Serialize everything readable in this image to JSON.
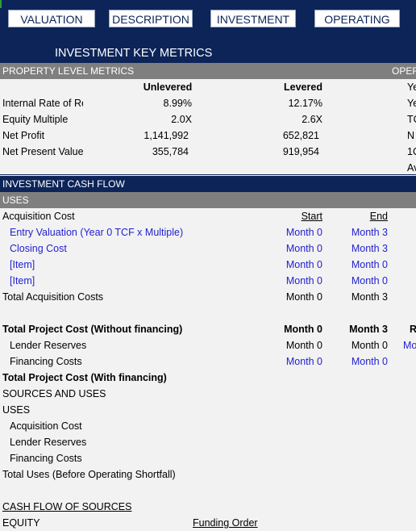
{
  "nav": {
    "valuation": "VALUATION",
    "description": "DESCRIPTION",
    "investment": "INVESTMENT",
    "operating": "OPERATING"
  },
  "header": {
    "title": "INVESTMENT KEY METRICS"
  },
  "property_metrics": {
    "section_label": "PROPERTY LEVEL METRICS",
    "right_section_label": "OPER",
    "col_unlevered": "Unlevered",
    "col_levered": "Levered",
    "rows": [
      {
        "label": "Internal Rate of Return",
        "unlevered": "8.99%",
        "levered": "12.17%"
      },
      {
        "label": "Equity Multiple",
        "unlevered": "2.0X",
        "levered": "2.6X"
      },
      {
        "label": "Net Profit",
        "unlevered": "1,141,992",
        "levered": "652,821"
      },
      {
        "label": "Net Present Value",
        "unlevered": "355,784",
        "levered": "919,954"
      }
    ],
    "right_fragments": [
      "Ye",
      "Ye",
      "TC",
      "N",
      "1C",
      "Av"
    ]
  },
  "cash_flow": {
    "section_label": "INVESTMENT CASH FLOW",
    "uses_label": "USES",
    "acquisition_cost": "Acquisition Cost",
    "col_start": "Start",
    "col_end": "End",
    "items": [
      {
        "label": "Entry Valuation (Year 0 TCF x Multiple)",
        "start": "Month 0",
        "end": "Month 3"
      },
      {
        "label": "Closing Cost",
        "start": "Month 0",
        "end": "Month 3"
      },
      {
        "label": "[Item]",
        "start": "Month 0",
        "end": "Month 0"
      },
      {
        "label": "[Item]",
        "start": "Month 0",
        "end": "Month 0"
      }
    ],
    "total_acquisition": {
      "label": "Total Acquisition Costs",
      "start": "Month 0",
      "end": "Month 3"
    },
    "total_project": {
      "label": "Total Project Cost (Without financing)",
      "start": "Month 0",
      "end": "Month 3",
      "extra": "R"
    },
    "lender_reserves": {
      "label": "Lender Reserves",
      "start": "Month 0",
      "end": "Month 0",
      "extra": "Mo"
    },
    "financing_costs": {
      "label": "Financing Costs",
      "start": "Month 0",
      "end": "Month 0"
    },
    "total_with_financing": "Total Project Cost (With financing)",
    "sources_and_uses": "SOURCES AND USES",
    "uses2": "USES",
    "su_items": [
      "Acquisition Cost",
      "Lender Reserves",
      "Financing Costs"
    ],
    "total_uses": "Total Uses (Before Operating Shortfall)",
    "cash_flow_sources": "CASH FLOW OF SOURCES",
    "equity": "EQUITY",
    "funding_order": "Funding Order"
  }
}
